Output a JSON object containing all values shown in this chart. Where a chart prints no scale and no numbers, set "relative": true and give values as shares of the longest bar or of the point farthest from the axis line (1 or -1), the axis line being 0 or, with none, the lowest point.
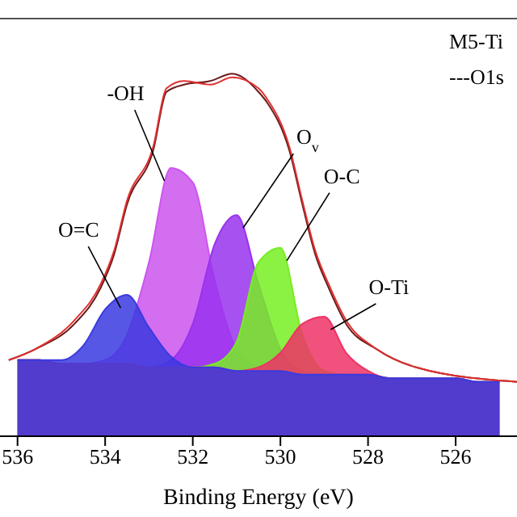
{
  "chart_data": {
    "type": "area",
    "relative": true,
    "xlabel": "Binding Energy (eV)",
    "annotations": [
      "M5-Ti",
      "---O1s"
    ],
    "xlim": [
      536.4,
      524.6
    ],
    "xticks": [
      536,
      534,
      532,
      530,
      528,
      526
    ],
    "x": [
      536,
      535.5,
      535,
      534.5,
      534,
      533.5,
      533,
      532.5,
      532,
      531.5,
      531,
      530.5,
      530,
      529.5,
      529,
      528.5,
      528,
      527.5,
      527,
      526.5,
      526,
      525.5,
      525
    ],
    "series": [
      {
        "name": "-OH",
        "color": "#cc55ee",
        "values": [
          0.21,
          0.21,
          0.2,
          0.2,
          0.21,
          0.28,
          0.48,
          0.74,
          0.7,
          0.43,
          0.24,
          0.19,
          0.18,
          0.17,
          0.17,
          0.17,
          0.17,
          0.16,
          0.16,
          0.16,
          0.16,
          0.15,
          0.15
        ]
      },
      {
        "name": "O$_{v}$",
        "color": "#9933ee",
        "values": [
          0.21,
          0.21,
          0.2,
          0.2,
          0.2,
          0.2,
          0.19,
          0.21,
          0.31,
          0.53,
          0.61,
          0.42,
          0.24,
          0.18,
          0.17,
          0.17,
          0.17,
          0.16,
          0.16,
          0.16,
          0.16,
          0.15,
          0.15
        ]
      },
      {
        "name": "O-C",
        "color": "#77ee22",
        "values": [
          0.21,
          0.21,
          0.2,
          0.2,
          0.2,
          0.2,
          0.19,
          0.19,
          0.19,
          0.2,
          0.26,
          0.48,
          0.52,
          0.28,
          0.18,
          0.17,
          0.17,
          0.16,
          0.16,
          0.16,
          0.16,
          0.15,
          0.15
        ]
      },
      {
        "name": "O-Ti",
        "color": "#ee3366",
        "values": [
          0.21,
          0.21,
          0.2,
          0.2,
          0.2,
          0.2,
          0.19,
          0.19,
          0.19,
          0.19,
          0.18,
          0.19,
          0.23,
          0.31,
          0.33,
          0.23,
          0.18,
          0.16,
          0.16,
          0.16,
          0.16,
          0.15,
          0.15
        ]
      },
      {
        "name": "O=C",
        "color": "#3a3ae0",
        "values": [
          0.21,
          0.21,
          0.21,
          0.25,
          0.35,
          0.39,
          0.3,
          0.22,
          0.19,
          0.19,
          0.18,
          0.18,
          0.18,
          0.17,
          0.17,
          0.17,
          0.17,
          0.16,
          0.16,
          0.16,
          0.16,
          0.15,
          0.15
        ]
      },
      {
        "type": "line",
        "color": "#6b1a1a",
        "x": [
          536.2,
          535.6,
          534.7,
          534.1,
          533.8,
          533.5,
          532.9,
          532.6,
          532.2,
          531.6,
          531.1,
          530.5,
          530.3,
          529.8,
          529.5,
          529.2,
          528.9,
          528.5,
          527.8,
          526.9,
          524.6
        ],
        "values": [
          0.21,
          0.24,
          0.31,
          0.41,
          0.5,
          0.64,
          0.79,
          0.95,
          0.97,
          0.98,
          1,
          0.95,
          0.92,
          0.79,
          0.64,
          0.5,
          0.41,
          0.31,
          0.24,
          0.19,
          0.15
        ]
      },
      {
        "type": "line",
        "color": "#e03030",
        "x": [
          536.2,
          535.6,
          534.7,
          534.1,
          533.8,
          533.5,
          532.9,
          532.6,
          532.2,
          531.6,
          531.1,
          530.5,
          530.3,
          529.8,
          529.5,
          529.2,
          528.9,
          528.5,
          527.8,
          526.9,
          524.6
        ],
        "values": [
          0.21,
          0.24,
          0.32,
          0.42,
          0.51,
          0.65,
          0.8,
          0.96,
          0.98,
          0.97,
          0.99,
          0.96,
          0.93,
          0.8,
          0.65,
          0.51,
          0.42,
          0.32,
          0.24,
          0.19,
          0.15
        ]
      }
    ]
  }
}
